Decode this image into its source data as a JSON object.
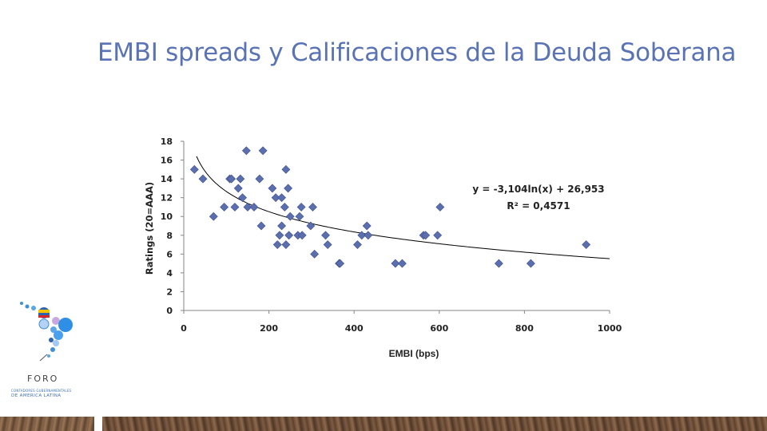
{
  "slide": {
    "title": "EMBI spreads y Calificaciones de la Deuda Soberana"
  },
  "logo": {
    "name": "FORO",
    "line1": "CONTADORES GUBERNAMENTALES",
    "line2": "DE AMERICA LATINA"
  },
  "colors": {
    "title": "#5a73b4",
    "marker": "#5b6fae",
    "trendline": "#000000",
    "axis": "#868686"
  },
  "chart_data": {
    "type": "scatter",
    "xlabel": "EMBI (bps)",
    "ylabel": "Ratings (20=AAA)",
    "xlim": [
      0,
      1000
    ],
    "ylim": [
      0,
      18
    ],
    "xticks": [
      0,
      200,
      400,
      600,
      800,
      1000
    ],
    "yticks": [
      0,
      2,
      4,
      6,
      8,
      10,
      12,
      14,
      16,
      18
    ],
    "grid": false,
    "marker": "diamond",
    "points": [
      [
        25,
        15
      ],
      [
        45,
        14
      ],
      [
        70,
        10
      ],
      [
        95,
        11
      ],
      [
        108,
        14
      ],
      [
        112,
        14
      ],
      [
        120,
        11
      ],
      [
        128,
        13
      ],
      [
        133,
        14
      ],
      [
        138,
        12
      ],
      [
        147,
        17
      ],
      [
        150,
        11
      ],
      [
        165,
        11
      ],
      [
        178,
        14
      ],
      [
        182,
        9
      ],
      [
        186,
        17
      ],
      [
        208,
        13
      ],
      [
        216,
        12
      ],
      [
        220,
        7
      ],
      [
        225,
        8
      ],
      [
        230,
        12
      ],
      [
        230,
        9
      ],
      [
        237,
        11
      ],
      [
        240,
        15
      ],
      [
        240,
        7
      ],
      [
        245,
        13
      ],
      [
        247,
        8
      ],
      [
        250,
        10
      ],
      [
        268,
        8
      ],
      [
        272,
        10
      ],
      [
        276,
        11
      ],
      [
        278,
        8
      ],
      [
        298,
        9
      ],
      [
        303,
        11
      ],
      [
        307,
        6
      ],
      [
        333,
        8
      ],
      [
        338,
        7
      ],
      [
        365,
        5
      ],
      [
        367,
        5
      ],
      [
        408,
        7
      ],
      [
        418,
        8
      ],
      [
        430,
        9
      ],
      [
        433,
        8
      ],
      [
        497,
        5
      ],
      [
        513,
        5
      ],
      [
        563,
        8
      ],
      [
        568,
        8
      ],
      [
        596,
        8
      ],
      [
        602,
        11
      ],
      [
        740,
        5
      ],
      [
        815,
        5
      ],
      [
        945,
        7
      ]
    ],
    "trendline": {
      "type": "logarithmic",
      "a": -3.104,
      "b": 26.953,
      "x_range": [
        30,
        1000
      ]
    },
    "annotations": [
      "y = -3,104ln(x) + 26,953",
      "R² = 0,4571"
    ]
  }
}
